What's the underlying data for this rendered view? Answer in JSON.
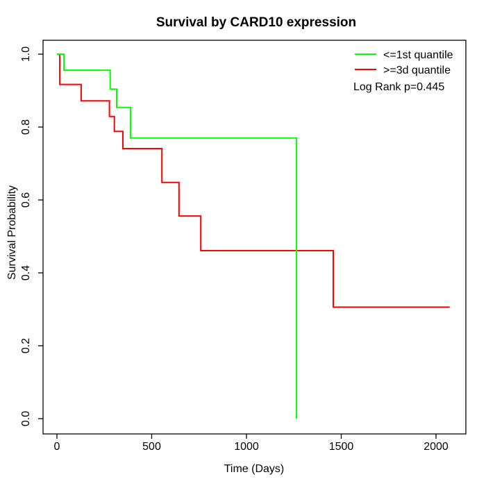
{
  "chart_data": {
    "type": "line",
    "subtype": "kaplan-meier-step",
    "title": "Survival by CARD10 expression",
    "xlabel": "Time (Days)",
    "ylabel": "Survival Probability",
    "annotation": "Log Rank p=0.445",
    "legend_position": "top-right",
    "grid": false,
    "x_axis": {
      "range": [
        0,
        2156
      ],
      "ticks": [
        {
          "v": 0,
          "label": "0"
        },
        {
          "v": 500,
          "label": "500"
        },
        {
          "v": 1000,
          "label": "1000"
        },
        {
          "v": 1500,
          "label": "1500"
        },
        {
          "v": 2000,
          "label": "2000"
        }
      ]
    },
    "y_axis": {
      "range": [
        0,
        1
      ],
      "ticks": [
        {
          "v": 0.0,
          "label": "0.0"
        },
        {
          "v": 0.2,
          "label": "0.2"
        },
        {
          "v": 0.4,
          "label": "0.4"
        },
        {
          "v": 0.6,
          "label": "0.6"
        },
        {
          "v": 0.8,
          "label": "0.8"
        },
        {
          "v": 1.0,
          "label": "1.0"
        }
      ]
    },
    "series": [
      {
        "name": "<=1st quantile",
        "color": "#00FF00",
        "steps": [
          [
            0,
            1.0
          ],
          [
            37,
            0.956
          ],
          [
            281,
            0.904
          ],
          [
            315,
            0.854
          ],
          [
            388,
            0.77
          ],
          [
            1264,
            0.0
          ]
        ],
        "end_time": 1264
      },
      {
        "name": ">=3d quantile",
        "color": "#FF0000",
        "steps": [
          [
            0,
            1.0
          ],
          [
            15,
            0.917
          ],
          [
            128,
            0.872
          ],
          [
            277,
            0.829
          ],
          [
            303,
            0.788
          ],
          [
            348,
            0.741
          ],
          [
            554,
            0.648
          ],
          [
            644,
            0.556
          ],
          [
            759,
            0.461
          ],
          [
            1458,
            0.306
          ]
        ],
        "end_time": 2072
      }
    ]
  }
}
